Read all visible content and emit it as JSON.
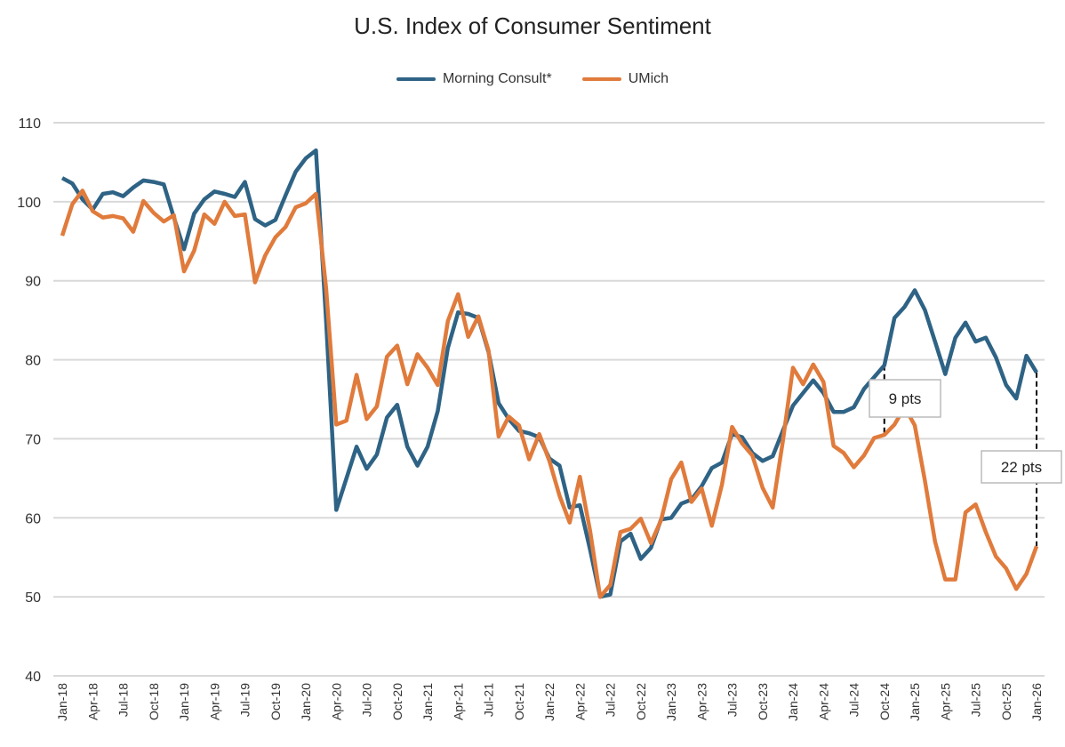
{
  "chart_data": {
    "type": "line",
    "title": "U.S. Index of Consumer Sentiment",
    "xlabel": "",
    "ylabel": "",
    "ylim": [
      40,
      110
    ],
    "yticks": [
      40,
      50,
      60,
      70,
      80,
      90,
      100,
      110
    ],
    "grid": true,
    "legend": "top",
    "x_start": "Jan-18",
    "xtick_labels": [
      "Jan-18",
      "Apr-18",
      "Jul-18",
      "Oct-18",
      "Jan-19",
      "Apr-19",
      "Jul-19",
      "Oct-19",
      "Jan-20",
      "Apr-20",
      "Jul-20",
      "Oct-20",
      "Jan-21",
      "Apr-21",
      "Jul-21",
      "Oct-21",
      "Jan-22",
      "Apr-22",
      "Jul-22",
      "Oct-22",
      "Jan-23",
      "Apr-23",
      "Jul-23",
      "Oct-23",
      "Jan-24",
      "Apr-24",
      "Jul-24",
      "Oct-24",
      "Jan-25",
      "Apr-25",
      "Jul-25",
      "Oct-25",
      "Jan-26"
    ],
    "series": [
      {
        "name": "Morning Consult*",
        "color": "#2e6385",
        "values": [
          103,
          102.3,
          100.3,
          99,
          101,
          101.2,
          100.7,
          101.8,
          102.7,
          102.5,
          102.2,
          98,
          94,
          98.5,
          100.3,
          101.3,
          101,
          100.6,
          102.5,
          97.8,
          97,
          97.7,
          100.8,
          103.8,
          105.5,
          106.5,
          85,
          61,
          65,
          69,
          66.2,
          68,
          72.7,
          74.3,
          69,
          66.6,
          69,
          73.5,
          81.5,
          86,
          85.8,
          85.3,
          81,
          74.5,
          72.5,
          71,
          70.7,
          70.2,
          67.5,
          66.6,
          61.3,
          61.6,
          56,
          50,
          50.3,
          57,
          58,
          54.8,
          56.2,
          59.8,
          60,
          61.8,
          62.3,
          64,
          66.3,
          67,
          70.6,
          70.2,
          68.2,
          67.2,
          67.8,
          71,
          74.2,
          75.8,
          77.4,
          75.8,
          73.4,
          73.4,
          74,
          76.3,
          77.8,
          79.3,
          85.3,
          86.7,
          88.8,
          86.3,
          82.3,
          78.2,
          82.8,
          84.7,
          82.3,
          82.8,
          80.3,
          76.8,
          75.1,
          80.5,
          78.4
        ]
      },
      {
        "name": "UMich",
        "color": "#e07b3c",
        "values": [
          95.7,
          99.7,
          101.4,
          98.8,
          98.0,
          98.2,
          97.9,
          96.2,
          100.1,
          98.6,
          97.5,
          98.3,
          91.2,
          93.8,
          98.4,
          97.2,
          100.0,
          98.2,
          98.4,
          89.8,
          93.2,
          95.5,
          96.8,
          99.3,
          99.8,
          101.0,
          89.1,
          71.8,
          72.3,
          78.1,
          72.5,
          74.1,
          80.4,
          81.8,
          76.9,
          80.7,
          79.0,
          76.8,
          84.9,
          88.3,
          82.9,
          85.5,
          81.2,
          70.3,
          72.8,
          71.7,
          67.4,
          70.6,
          67.2,
          62.8,
          59.4,
          65.2,
          58.4,
          50.0,
          51.5,
          58.2,
          58.6,
          59.9,
          56.8,
          59.7,
          64.9,
          67.0,
          62.0,
          63.7,
          59.0,
          64.2,
          71.5,
          69.4,
          67.9,
          63.8,
          61.3,
          69.7,
          79.0,
          76.9,
          79.4,
          77.2,
          69.1,
          68.2,
          66.4,
          67.9,
          70.1,
          70.5,
          71.8,
          74.0,
          71.7,
          64.7,
          57.0,
          52.2,
          52.2,
          60.7,
          61.7,
          58.2,
          55.1,
          53.6,
          51.0,
          52.9,
          56.4
        ]
      }
    ],
    "annotations": [
      {
        "label": "9 pts",
        "at": "Oct-24"
      },
      {
        "label": "22 pts",
        "at": "Jan-26"
      }
    ]
  }
}
